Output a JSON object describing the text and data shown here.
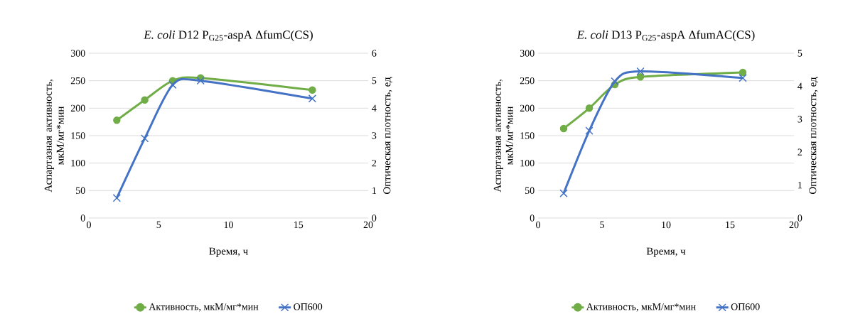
{
  "chart_data": [
    {
      "type": "line",
      "title": "*E. coli* D12 P$_{G25}$-aspA ΔfumC(CS)",
      "xlabel": "Время, ч",
      "ylabel": "Аспартазная активность, мкМ/мг*мин",
      "y2label": "Оптическая плотность, ед",
      "x": [
        2,
        4,
        6,
        8,
        16
      ],
      "series": [
        {
          "name": "Активность, мкМ/мг*мин",
          "color": "#70ad47",
          "marker": "circle",
          "values": [
            178,
            215,
            250,
            255,
            233
          ]
        },
        {
          "name": "ОП600",
          "color": "#4472c4",
          "marker": "cross",
          "axis": "y2",
          "values": [
            0.73,
            2.9,
            4.85,
            5.0,
            4.35
          ]
        }
      ],
      "xlim": [
        0,
        20
      ],
      "xticks": [
        0,
        5,
        10,
        15,
        20
      ],
      "ylim": [
        0,
        300
      ],
      "yticks": [
        0,
        50,
        100,
        150,
        200,
        250,
        300
      ],
      "y2lim": [
        0,
        6
      ],
      "y2ticks": [
        0,
        1,
        2,
        3,
        4,
        5,
        6
      ],
      "grid": "y",
      "legend": "bottom"
    },
    {
      "type": "line",
      "title": "*E. coli* D13 P$_{G25}$-aspA ΔfumAC(CS)",
      "xlabel": "Время, ч",
      "ylabel": "Аспартазная активность, мкМ/мг*мин",
      "y2label": "Оптическая плотность, ед",
      "x": [
        2,
        4,
        6,
        8,
        16
      ],
      "series": [
        {
          "name": "Активность, мкМ/мг*мин",
          "color": "#70ad47",
          "marker": "circle",
          "values": [
            163,
            200,
            243,
            257,
            265
          ]
        },
        {
          "name": "ОП600",
          "color": "#4472c4",
          "marker": "cross",
          "axis": "y2",
          "values": [
            0.75,
            2.65,
            4.15,
            4.45,
            4.25
          ]
        }
      ],
      "xlim": [
        0,
        20
      ],
      "xticks": [
        0,
        5,
        10,
        15,
        20
      ],
      "ylim": [
        0,
        300
      ],
      "yticks": [
        0,
        50,
        100,
        150,
        200,
        250,
        300
      ],
      "y2lim": [
        0,
        5
      ],
      "y2ticks": [
        0,
        1,
        2,
        3,
        4,
        5
      ],
      "grid": "y",
      "legend": "bottom"
    }
  ]
}
